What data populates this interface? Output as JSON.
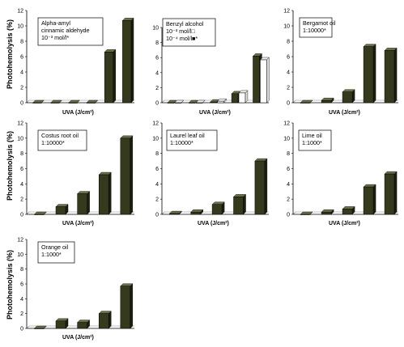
{
  "ylabel": "Photohemolysis (%)",
  "xlabel": "UVA (J/cm²)",
  "colors": {
    "bar": "#353a1e",
    "bar_side": "#1c1f0e",
    "bar_top": "#6a6f4a",
    "open_bar": "#ffffff",
    "axis": "#000000"
  },
  "chart_data": [
    {
      "type": "bar",
      "legend": [
        "Alpha-amyl",
        "cinnamic aldehyde",
        "10⁻³ mol/l*"
      ],
      "ylim": [
        0,
        12
      ],
      "yticks": [
        "0",
        "2",
        "4",
        "6",
        "8",
        "10",
        "12"
      ],
      "series": [
        {
          "style": "filled",
          "values": [
            0.0,
            0.0,
            0.0,
            0.0,
            6.6,
            10.7
          ]
        }
      ]
    },
    {
      "type": "bar",
      "legend": [
        "Benzyl alcohol",
        "10⁻³ mol/l□",
        "10⁻⁴ mol/l■*"
      ],
      "ylim": [
        0,
        10
      ],
      "yticks": [
        "0",
        "2",
        "4",
        "6",
        "8",
        "10"
      ],
      "series": [
        {
          "style": "filled",
          "values": [
            0.0,
            0.0,
            0.1,
            1.2,
            6.2
          ]
        },
        {
          "style": "open",
          "values": [
            0.0,
            0.0,
            0.2,
            1.3,
            5.7
          ]
        }
      ]
    },
    {
      "type": "bar",
      "legend": [
        "Bergamot oil",
        "1:10000*"
      ],
      "ylim": [
        0,
        12
      ],
      "yticks": [
        "0",
        "2",
        "4",
        "6",
        "8",
        "10",
        "12"
      ],
      "series": [
        {
          "style": "filled",
          "values": [
            0.0,
            0.3,
            1.4,
            7.3,
            6.8
          ]
        }
      ]
    },
    {
      "type": "bar",
      "legend": [
        "Costus root oil",
        "1:10000*"
      ],
      "ylim": [
        0,
        12
      ],
      "yticks": [
        "0",
        "2",
        "4",
        "6",
        "8",
        "10",
        "12"
      ],
      "series": [
        {
          "style": "filled",
          "values": [
            0.0,
            1.0,
            2.7,
            5.2,
            10.0
          ]
        }
      ]
    },
    {
      "type": "bar",
      "legend": [
        "Laurel leaf oil",
        "1:10000*"
      ],
      "ylim": [
        0,
        12
      ],
      "yticks": [
        "0",
        "2",
        "4",
        "6",
        "8",
        "10",
        "12"
      ],
      "series": [
        {
          "style": "filled",
          "values": [
            0.1,
            0.3,
            1.3,
            2.3,
            7.0
          ]
        }
      ]
    },
    {
      "type": "bar",
      "legend": [
        "Lime oil",
        "1:1000*"
      ],
      "ylim": [
        0,
        12
      ],
      "yticks": [
        "0",
        "2",
        "4",
        "6",
        "8",
        "10",
        "12"
      ],
      "series": [
        {
          "style": "filled",
          "values": [
            0.0,
            0.3,
            0.7,
            3.6,
            5.3
          ]
        }
      ]
    },
    {
      "type": "bar",
      "legend": [
        "Orange oil",
        "1:1000*"
      ],
      "ylim": [
        0,
        12
      ],
      "yticks": [
        "0",
        "2",
        "4",
        "6",
        "8",
        "10",
        "12"
      ],
      "series": [
        {
          "style": "filled",
          "values": [
            0.0,
            1.0,
            0.8,
            2.0,
            5.7
          ]
        }
      ]
    }
  ]
}
